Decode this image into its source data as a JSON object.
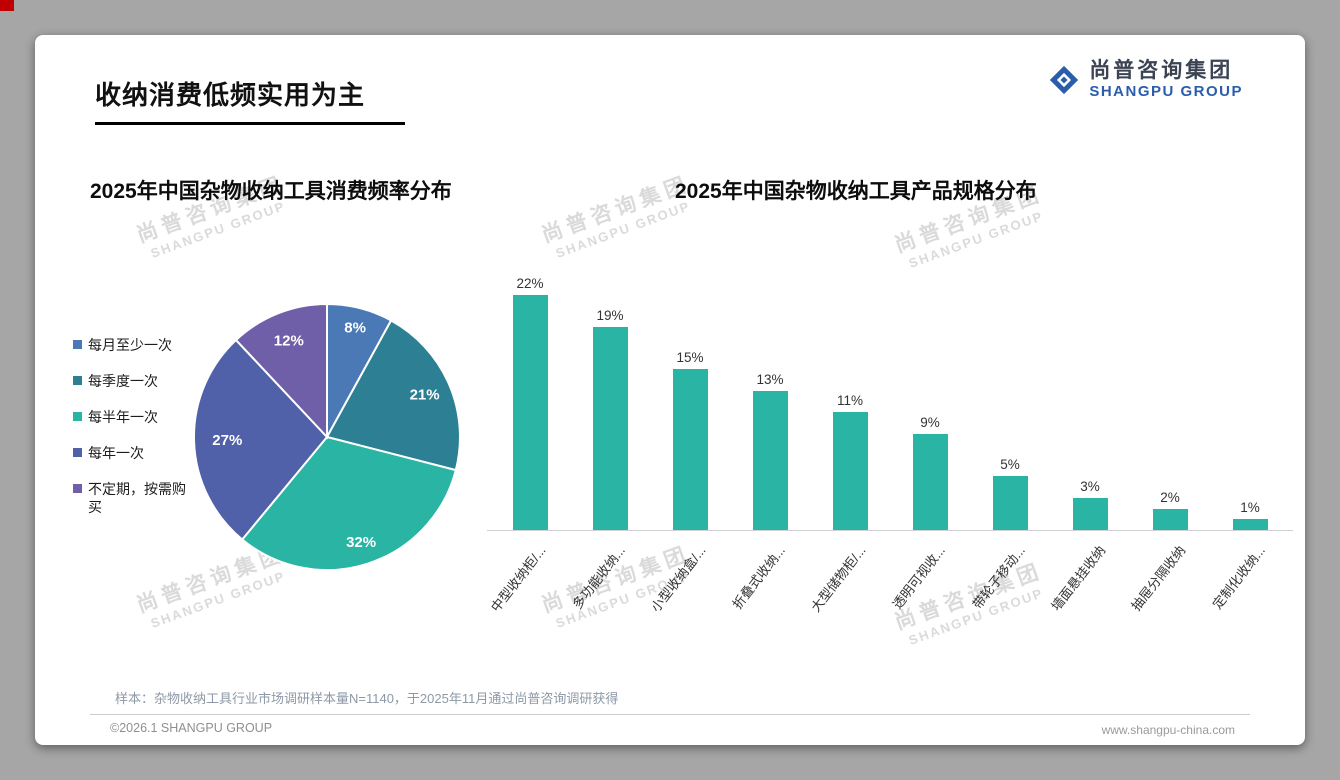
{
  "page": {
    "title": "收纳消费低频实用为主",
    "logo": {
      "cn": "尚普咨询集团",
      "en": "SHANGPU GROUP"
    },
    "watermark": {
      "cn": "尚普咨询集团",
      "en": "SHANGPU GROUP"
    },
    "note": "样本：杂物收纳工具行业市场调研样本量N=1140，于2025年11月通过尚普咨询调研获得",
    "footer_left": "©2026.1 SHANGPU GROUP",
    "footer_right": "www.shangpu-china.com",
    "brand_blue": "#2a5dab"
  },
  "chart_data": [
    {
      "type": "pie",
      "title": "2025年中国杂物收纳工具消费频率分布",
      "labels": [
        "每月至少一次",
        "每季度一次",
        "每半年一次",
        "每年一次",
        "不定期，按需购买"
      ],
      "values": [
        8,
        21,
        32,
        27,
        12
      ],
      "unit": "%",
      "colors": [
        "#4a79b6",
        "#2d7f93",
        "#2ab4a4",
        "#5061a9",
        "#6f5fa9"
      ],
      "start_angle_deg": -90,
      "direction": "clockwise",
      "legend_position": "left",
      "value_labels": "inside-white-bold"
    },
    {
      "type": "bar",
      "title": "2025年中国杂物收纳工具产品规格分布",
      "categories": [
        "中型收纳柜/...",
        "多功能收纳...",
        "小型收纳盒/...",
        "折叠式收纳...",
        "大型储物柜/...",
        "透明可视收...",
        "带轮子移动...",
        "墙面悬挂收纳",
        "抽屉分隔收纳",
        "定制化收纳..."
      ],
      "values": [
        22,
        19,
        15,
        13,
        11,
        9,
        5,
        3,
        2,
        1
      ],
      "unit": "%",
      "bar_color": "#2ab4a4",
      "value_labels": true,
      "ylim": [
        0,
        24
      ],
      "grid": false,
      "xlabel_rotation_deg": -52
    }
  ]
}
